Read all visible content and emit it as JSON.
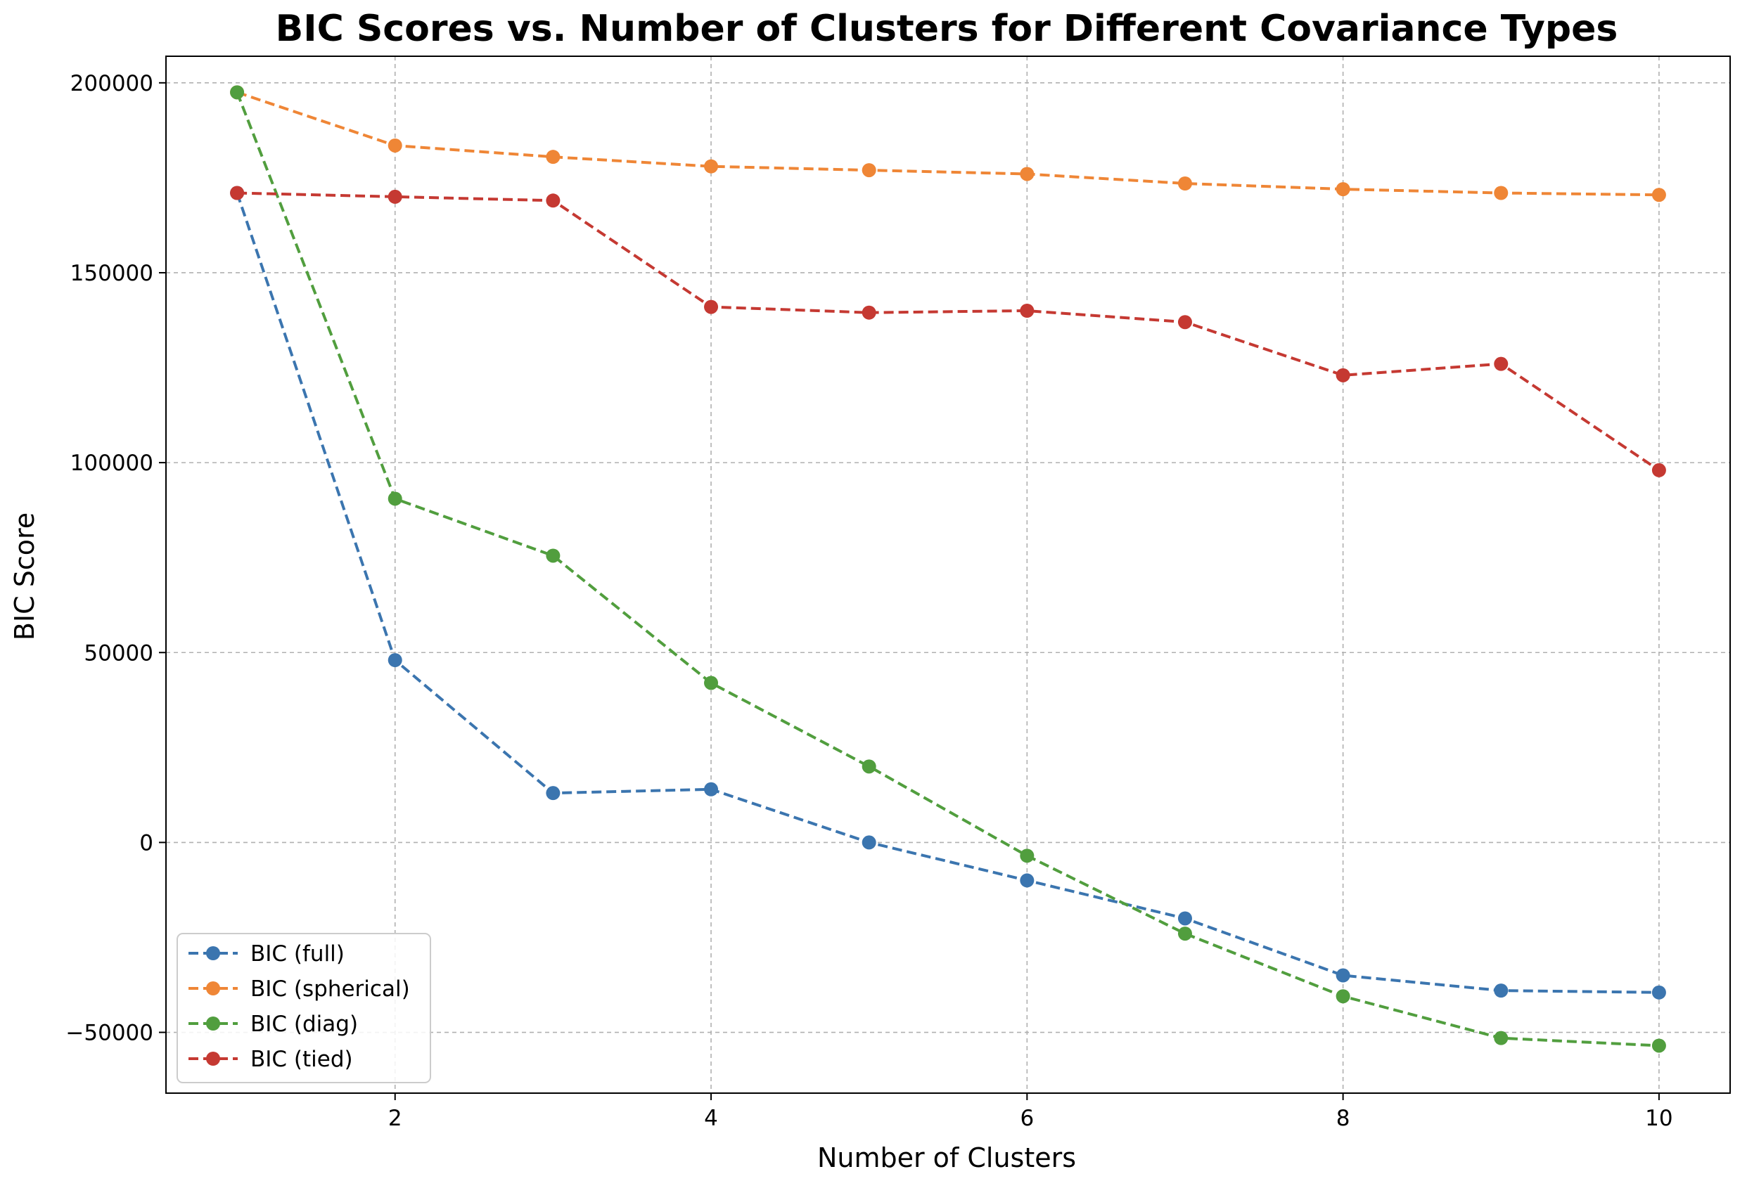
{
  "chart_data": {
    "type": "line",
    "title": "BIC Scores vs. Number of Clusters for Different Covariance Types",
    "xlabel": "Number of Clusters",
    "ylabel": "BIC Score",
    "xlim": [
      0.55,
      10.45
    ],
    "ylim": [
      -66000,
      207000
    ],
    "x_ticks": [
      2,
      4,
      6,
      8,
      10
    ],
    "y_ticks": [
      -50000,
      0,
      50000,
      100000,
      150000,
      200000
    ],
    "x_tick_labels": [
      "2",
      "4",
      "6",
      "8",
      "10"
    ],
    "y_tick_labels": [
      "−50000",
      "0",
      "50000",
      "100000",
      "150000",
      "200000"
    ],
    "grid": true,
    "legend_position": "lower-left",
    "x": [
      1,
      2,
      3,
      4,
      5,
      6,
      7,
      8,
      9,
      10
    ],
    "series": [
      {
        "name": "BIC (full)",
        "color": "#3b75af",
        "values": [
          171000,
          48000,
          13000,
          14000,
          0,
          -10000,
          -20000,
          -35000,
          -39000,
          -39500
        ]
      },
      {
        "name": "BIC (spherical)",
        "color": "#ef8636",
        "values": [
          197500,
          183500,
          180500,
          178000,
          177000,
          176000,
          173500,
          172000,
          171000,
          170500
        ]
      },
      {
        "name": "BIC (diag)",
        "color": "#519e3e",
        "values": [
          197500,
          90500,
          75500,
          42000,
          20000,
          -3500,
          -24000,
          -40500,
          -51500,
          -53500
        ]
      },
      {
        "name": "BIC (tied)",
        "color": "#c53932",
        "values": [
          171000,
          170000,
          169000,
          141000,
          139500,
          140000,
          137000,
          123000,
          126000,
          98000
        ]
      }
    ]
  }
}
